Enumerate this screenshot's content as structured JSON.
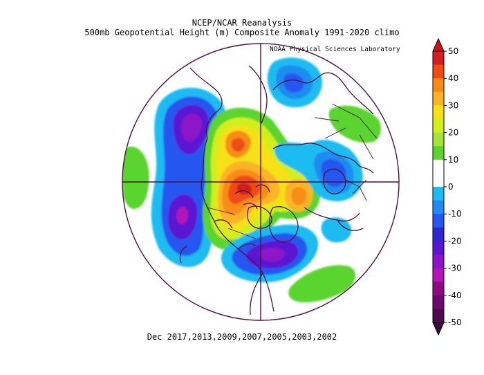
{
  "title": {
    "line1": "NCEP/NCAR Reanalysis",
    "line2": "500mb Geopotential Height (m) Composite Anomaly 1991-2020 climo"
  },
  "credit": "NOAA Physical Sciences Laboratory",
  "composite_label": "Dec 2017,2013,2009,2007,2005,2003,2002",
  "colorbar": {
    "labels": [
      "50",
      "40",
      "30",
      "20",
      "10",
      "0",
      "-10",
      "-20",
      "-30",
      "-40",
      "-50"
    ],
    "bins": [
      {
        "color": "#d21e1e"
      },
      {
        "color": "#f04b14"
      },
      {
        "color": "#f78c14"
      },
      {
        "color": "#fbb428"
      },
      {
        "color": "#f7e114"
      },
      {
        "color": "#d3ee1a"
      },
      {
        "color": "#a4e337"
      },
      {
        "color": "#5ad42d"
      },
      {
        "color": "#ffffff"
      },
      {
        "color": "#ffffff"
      },
      {
        "color": "#1ebbf0"
      },
      {
        "color": "#1e8cf0"
      },
      {
        "color": "#2856f0"
      },
      {
        "color": "#2d28d2"
      },
      {
        "color": "#5a14d2"
      },
      {
        "color": "#8c14c8"
      },
      {
        "color": "#b414b4"
      },
      {
        "color": "#8c0a82"
      },
      {
        "color": "#6e0a6e"
      },
      {
        "color": "#500a50"
      }
    ],
    "top_arrow_color": "#c81414",
    "bottom_arrow_color": "#3c0a3c"
  },
  "map_style": {
    "outline_color": "#4a1040",
    "projection": "north-polar-stereographic"
  }
}
